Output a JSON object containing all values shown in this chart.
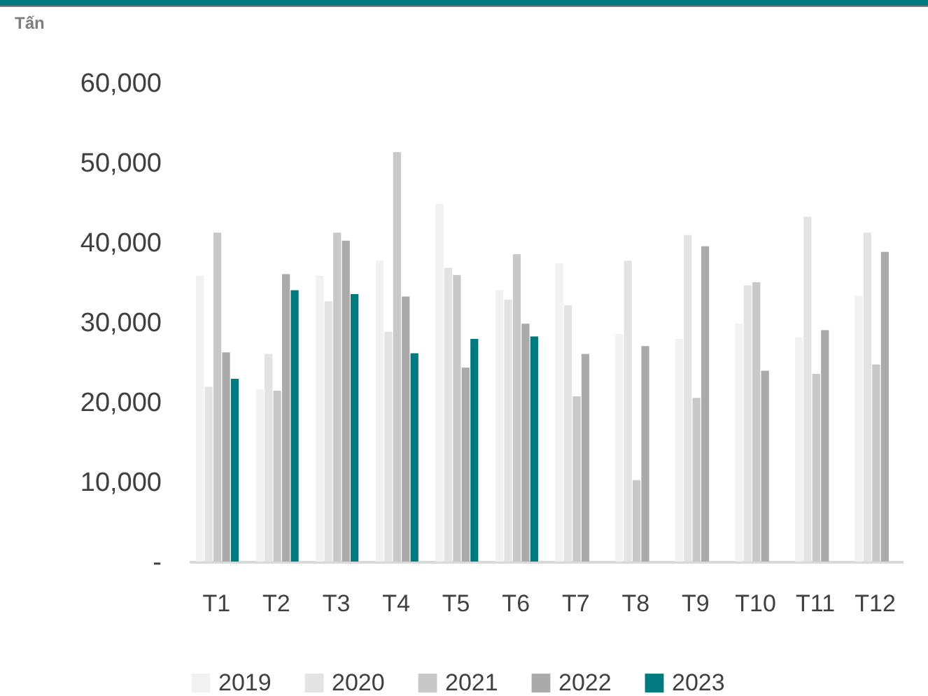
{
  "chart_data": {
    "type": "bar",
    "ylabel": "Tấn",
    "categories": [
      "T1",
      "T2",
      "T3",
      "T4",
      "T5",
      "T6",
      "T7",
      "T8",
      "T9",
      "T10",
      "T11",
      "T12"
    ],
    "series": [
      {
        "name": "2019",
        "color": "#f2f2f2",
        "values": [
          35800,
          21600,
          35800,
          37700,
          44800,
          34000,
          37400,
          28500,
          27900,
          29800,
          28100,
          33300
        ]
      },
      {
        "name": "2020",
        "color": "#e3e3e3",
        "values": [
          21900,
          26000,
          32600,
          28800,
          36800,
          32800,
          32100,
          37700,
          40900,
          34600,
          43200,
          41200
        ]
      },
      {
        "name": "2021",
        "color": "#c8c8c8",
        "values": [
          41200,
          21400,
          41200,
          51300,
          35900,
          38500,
          20700,
          10200,
          20500,
          35000,
          23500,
          24700
        ]
      },
      {
        "name": "2022",
        "color": "#aaaaaa",
        "values": [
          26200,
          36000,
          40200,
          33200,
          24300,
          29800,
          26000,
          27000,
          39500,
          23900,
          29000,
          38800
        ]
      },
      {
        "name": "2023",
        "color": "#007a7f",
        "values": [
          22900,
          34000,
          33500,
          26100,
          27900,
          28200,
          null,
          null,
          null,
          null,
          null,
          null
        ]
      }
    ],
    "ylim": [
      0,
      60000
    ],
    "yticks": [
      {
        "value": 0,
        "label": "-"
      },
      {
        "value": 10000,
        "label": "10,000"
      },
      {
        "value": 20000,
        "label": "20,000"
      },
      {
        "value": 30000,
        "label": "30,000"
      },
      {
        "value": 40000,
        "label": "40,000"
      },
      {
        "value": 50000,
        "label": "50,000"
      },
      {
        "value": 60000,
        "label": "60,000"
      }
    ],
    "grid": false,
    "legend": "bottom"
  }
}
